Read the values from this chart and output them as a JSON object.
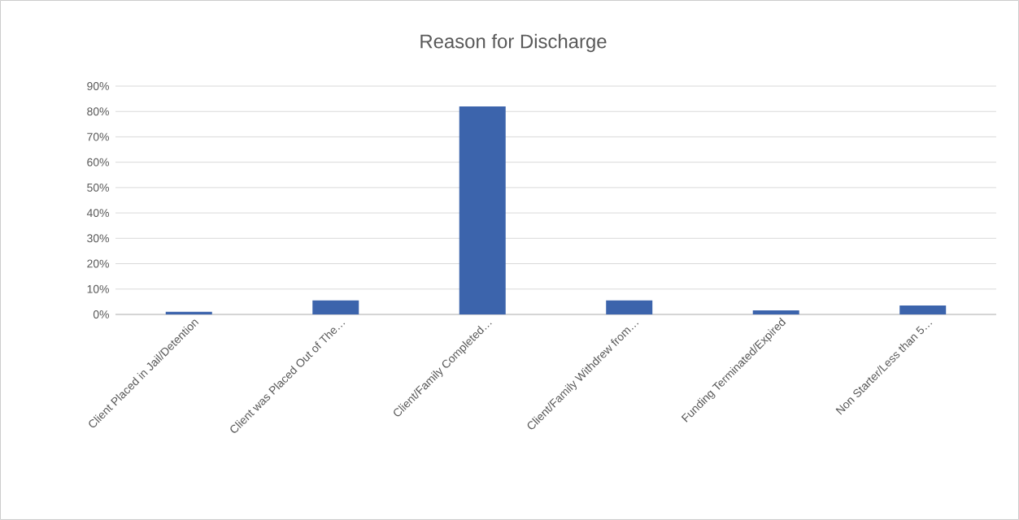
{
  "chart_data": {
    "type": "bar",
    "title": "Reason for Discharge",
    "categories": [
      "Client Placed in Jail/Detention",
      "Client was Placed Out of The…",
      "Client/Family Completed…",
      "Client/Family Withdrew from…",
      "Funding Terminated/Expired",
      "Non Starter/Less than 5…"
    ],
    "values": [
      1,
      5.5,
      82,
      5.5,
      1.6,
      3.5
    ],
    "color": "#3c64ac",
    "ylim": [
      0,
      90
    ],
    "yticks": [
      {
        "value": 0,
        "label": "0%"
      },
      {
        "value": 10,
        "label": "10%"
      },
      {
        "value": 20,
        "label": "20%"
      },
      {
        "value": 30,
        "label": "30%"
      },
      {
        "value": 40,
        "label": "40%"
      },
      {
        "value": 50,
        "label": "50%"
      },
      {
        "value": 60,
        "label": "60%"
      },
      {
        "value": 70,
        "label": "70%"
      },
      {
        "value": 80,
        "label": "80%"
      },
      {
        "value": 90,
        "label": "90%"
      }
    ],
    "grid": "y"
  }
}
